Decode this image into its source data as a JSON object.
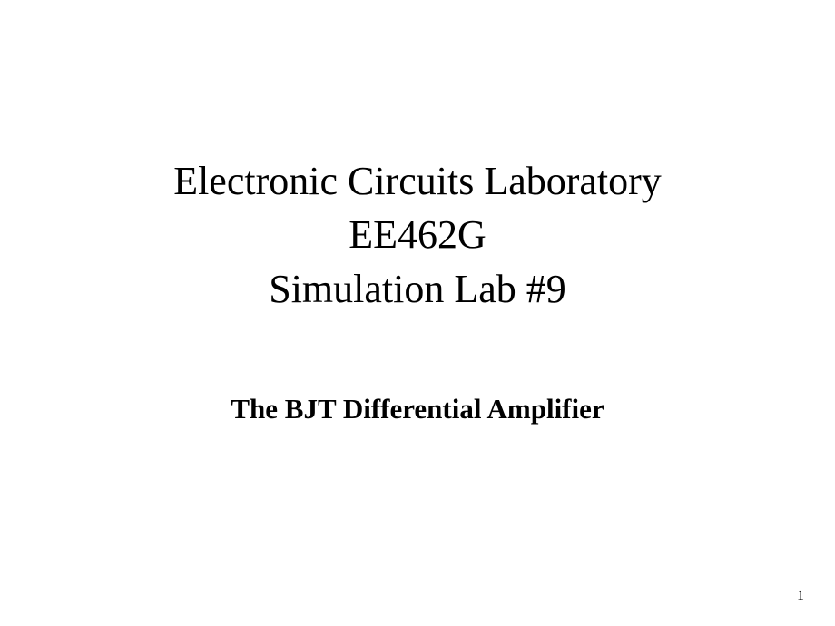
{
  "slide": {
    "title_line1": "Electronic Circuits Laboratory",
    "title_line2": "EE462G",
    "title_line3": "Simulation Lab #9",
    "subtitle": "The BJT Differential Amplifier",
    "page_number": "1"
  },
  "styles": {
    "background_color": "#ffffff",
    "text_color": "#000000",
    "title_fontsize": 44,
    "title_fontweight": "normal",
    "subtitle_fontsize": 31,
    "subtitle_fontweight": "bold",
    "page_number_fontsize": 16,
    "font_family": "Times New Roman"
  }
}
